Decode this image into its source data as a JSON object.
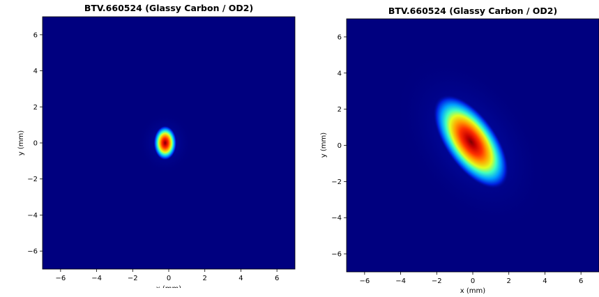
{
  "chart_data": [
    {
      "type": "heatmap",
      "title": "BTV.660524 (Glassy Carbon / OD2)",
      "xlabel": "x (mm)",
      "ylabel": "y (mm)",
      "xlim": [
        -7,
        7
      ],
      "ylim": [
        -7,
        7
      ],
      "xticks": [
        -6,
        -4,
        -2,
        0,
        2,
        4,
        6
      ],
      "yticks": [
        -6,
        -4,
        -2,
        0,
        2,
        4,
        6
      ],
      "colormap": "jet",
      "background_color": "#00007f",
      "beam_spot": {
        "center_x": -0.2,
        "center_y": 0.0,
        "sigma_x": 0.2,
        "sigma_y": 0.3,
        "tilt_deg": 0
      }
    },
    {
      "type": "heatmap",
      "title": "BTV.660524 (Glassy Carbon / OD2)",
      "xlabel": "x (mm)",
      "ylabel": "y (mm)",
      "xlim": [
        -7,
        7
      ],
      "ylim": [
        -7,
        7
      ],
      "xticks": [
        -6,
        -4,
        -2,
        0,
        2,
        4,
        6
      ],
      "yticks": [
        -6,
        -4,
        -2,
        0,
        2,
        4,
        6
      ],
      "colormap": "jet",
      "background_color": "#00007f",
      "beam_spot": {
        "center_x": -0.1,
        "center_y": 0.2,
        "sigma_x": 0.45,
        "sigma_y": 0.95,
        "tilt_deg": -35
      }
    }
  ]
}
